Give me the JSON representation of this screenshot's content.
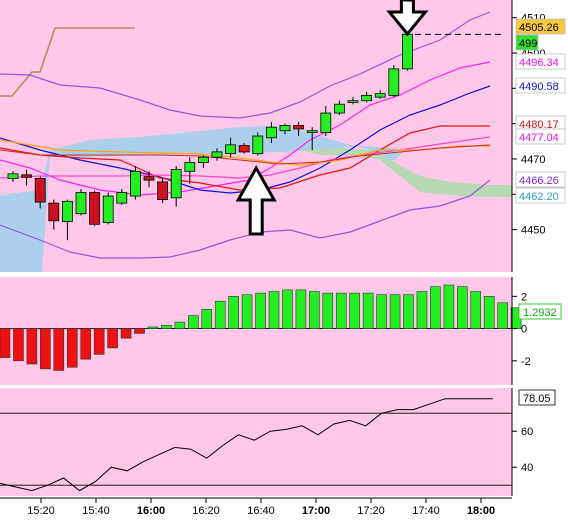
{
  "chart_data": [
    {
      "type": "candlestick",
      "title": "",
      "ylim": [
        4438,
        4515
      ],
      "y_ticks": [
        4450,
        4460,
        4470,
        4480,
        4490,
        4500,
        4510
      ],
      "y_tick_labels": [
        "4450",
        "4460",
        "4470",
        "4480",
        "4490",
        "4500",
        "4510"
      ],
      "candles": [
        {
          "t": 0,
          "o": 4464.5,
          "h": 4466.5,
          "l": 4463.5,
          "c": 4465.8
        },
        {
          "t": 1,
          "o": 4465.5,
          "h": 4467.0,
          "l": 4462.5,
          "c": 4464.8
        },
        {
          "t": 2,
          "o": 4464.5,
          "h": 4465.0,
          "l": 4456.0,
          "c": 4457.8
        },
        {
          "t": 3,
          "o": 4457.5,
          "h": 4458.5,
          "l": 4450.0,
          "c": 4452.5
        },
        {
          "t": 4,
          "o": 4452.3,
          "h": 4458.5,
          "l": 4447.0,
          "c": 4458.0
        },
        {
          "t": 5,
          "o": 4454.5,
          "h": 4461.5,
          "l": 4454.0,
          "c": 4460.5
        },
        {
          "t": 6,
          "o": 4460.5,
          "h": 4461.0,
          "l": 4451.0,
          "c": 4451.5
        },
        {
          "t": 7,
          "o": 4452.0,
          "h": 4460.5,
          "l": 4451.5,
          "c": 4459.5
        },
        {
          "t": 8,
          "o": 4457.5,
          "h": 4461.5,
          "l": 4457.0,
          "c": 4460.5
        },
        {
          "t": 9,
          "o": 4459.5,
          "h": 4468.0,
          "l": 4458.5,
          "c": 4466.5
        },
        {
          "t": 10,
          "o": 4465.0,
          "h": 4466.5,
          "l": 4462.0,
          "c": 4464.0
        },
        {
          "t": 11,
          "o": 4463.5,
          "h": 4464.5,
          "l": 4457.5,
          "c": 4458.5
        },
        {
          "t": 12,
          "o": 4459.0,
          "h": 4468.0,
          "l": 4456.5,
          "c": 4467.0
        },
        {
          "t": 13,
          "o": 4466.5,
          "h": 4470.5,
          "l": 4463.0,
          "c": 4469.0
        },
        {
          "t": 14,
          "o": 4469.0,
          "h": 4471.0,
          "l": 4467.5,
          "c": 4470.5
        },
        {
          "t": 15,
          "o": 4470.5,
          "h": 4473.0,
          "l": 4469.5,
          "c": 4472.0
        },
        {
          "t": 16,
          "o": 4471.5,
          "h": 4476.0,
          "l": 4470.5,
          "c": 4474.0
        },
        {
          "t": 17,
          "o": 4473.8,
          "h": 4474.5,
          "l": 4471.5,
          "c": 4472.0
        },
        {
          "t": 18,
          "o": 4471.5,
          "h": 4477.5,
          "l": 4471.0,
          "c": 4476.5
        },
        {
          "t": 19,
          "o": 4476.0,
          "h": 4480.5,
          "l": 4474.5,
          "c": 4479.0
        },
        {
          "t": 20,
          "o": 4478.0,
          "h": 4480.0,
          "l": 4477.0,
          "c": 4479.5
        },
        {
          "t": 21,
          "o": 4479.5,
          "h": 4480.5,
          "l": 4476.5,
          "c": 4478.5
        },
        {
          "t": 22,
          "o": 4477.5,
          "h": 4479.0,
          "l": 4472.5,
          "c": 4478.0
        },
        {
          "t": 23,
          "o": 4477.5,
          "h": 4485.0,
          "l": 4476.5,
          "c": 4483.0
        },
        {
          "t": 24,
          "o": 4483.0,
          "h": 4486.5,
          "l": 4482.5,
          "c": 4485.5
        },
        {
          "t": 25,
          "o": 4486.0,
          "h": 4487.5,
          "l": 4485.5,
          "c": 4486.5
        },
        {
          "t": 26,
          "o": 4486.5,
          "h": 4489.0,
          "l": 4486.0,
          "c": 4488.0
        },
        {
          "t": 27,
          "o": 4487.5,
          "h": 4489.5,
          "l": 4487.0,
          "c": 4488.5
        },
        {
          "t": 28,
          "o": 4488.0,
          "h": 4496.5,
          "l": 4487.5,
          "c": 4495.5
        },
        {
          "t": 29,
          "o": 4495.5,
          "h": 4506.0,
          "l": 4495.0,
          "c": 4505.3
        }
      ],
      "overlays": [
        {
          "name": "cloud-band-blue",
          "color": "#a6d0ec",
          "kind": "band"
        },
        {
          "name": "cloud-band-green",
          "color": "#b2d9b0",
          "kind": "band"
        },
        {
          "name": "lagging-line",
          "color": "#c2845a"
        },
        {
          "name": "upper-outer-band",
          "color": "#9a4fe0"
        },
        {
          "name": "upper-inner-band",
          "color": "#ff22ee"
        },
        {
          "name": "mid-line",
          "color": "#1010dd"
        },
        {
          "name": "lower-line",
          "color": "#ee1111"
        },
        {
          "name": "lower-band-line",
          "color": "#ff44cc"
        },
        {
          "name": "slow-average",
          "color": "#ffa500"
        },
        {
          "name": "base-line",
          "color": "#c82828"
        },
        {
          "name": "lower-outer-band",
          "color": "#9a4fe0"
        }
      ],
      "dashed_line": {
        "y": 4505.26
      },
      "price_tags": [
        {
          "text": "4505.26",
          "color": "#000000",
          "bg": "#f5c842"
        },
        {
          "text": "499",
          "color": "#000000",
          "bg": "#33dd33"
        },
        {
          "text": "4496.34",
          "color": "#ee11ee",
          "bg": "#ffffff"
        },
        {
          "text": "4490.58",
          "color": "#1111cc",
          "bg": "#ffffff"
        },
        {
          "text": "4480.17",
          "color": "#dd1111",
          "bg": "#ffffff"
        },
        {
          "text": "4477.04",
          "color": "#ee11ee",
          "bg": "#ffffff"
        },
        {
          "text": "4466.26",
          "color": "#8822cc",
          "bg": "#ffffff"
        },
        {
          "text": "4462.20",
          "color": "#3399dd",
          "bg": "#ffffff"
        }
      ],
      "annotations": [
        {
          "type": "arrow-up",
          "at_candle": 17
        },
        {
          "type": "arrow-down",
          "at_candle": 29
        }
      ]
    },
    {
      "type": "bar",
      "title": "",
      "ylim": [
        -3.5,
        3.2
      ],
      "y_ticks": [
        -2,
        0,
        2
      ],
      "y_tick_labels": [
        "-2",
        "0",
        "2"
      ],
      "values": [
        -1.8,
        -2.0,
        -2.2,
        -2.5,
        -2.6,
        -2.4,
        -1.9,
        -1.6,
        -1.2,
        -0.6,
        -0.3,
        0.1,
        0.2,
        0.4,
        0.8,
        1.2,
        1.7,
        2.0,
        2.1,
        2.2,
        2.3,
        2.4,
        2.4,
        2.3,
        2.2,
        2.2,
        2.2,
        2.2,
        2.1,
        2.1,
        2.1,
        2.3,
        2.6,
        2.7,
        2.6,
        2.3,
        2.0,
        1.6,
        1.29
      ],
      "positive_color": "#22ee22",
      "negative_color": "#ee1111",
      "last_value_label": "1.2932"
    },
    {
      "type": "line",
      "title": "",
      "ylim": [
        24,
        84
      ],
      "y_ticks": [
        40,
        60
      ],
      "y_tick_labels": [
        "40",
        "60"
      ],
      "hlines": [
        30,
        70
      ],
      "values": [
        31,
        29,
        27,
        30,
        34,
        27,
        32,
        40,
        38,
        43,
        47,
        51,
        50,
        45,
        52,
        58,
        55,
        60,
        61,
        63,
        58,
        64,
        66,
        63,
        70,
        72,
        72,
        75,
        78.05,
        78.05,
        78.05,
        78.05
      ],
      "last_value_label": "78.05"
    }
  ],
  "x_axis": {
    "tick_labels": [
      "15:20",
      "15:40",
      "16:00",
      "16:20",
      "16:40",
      "17:00",
      "17:20",
      "17:40",
      "18:00"
    ],
    "bold_labels": [
      "16:00",
      "17:00",
      "18:00"
    ]
  }
}
